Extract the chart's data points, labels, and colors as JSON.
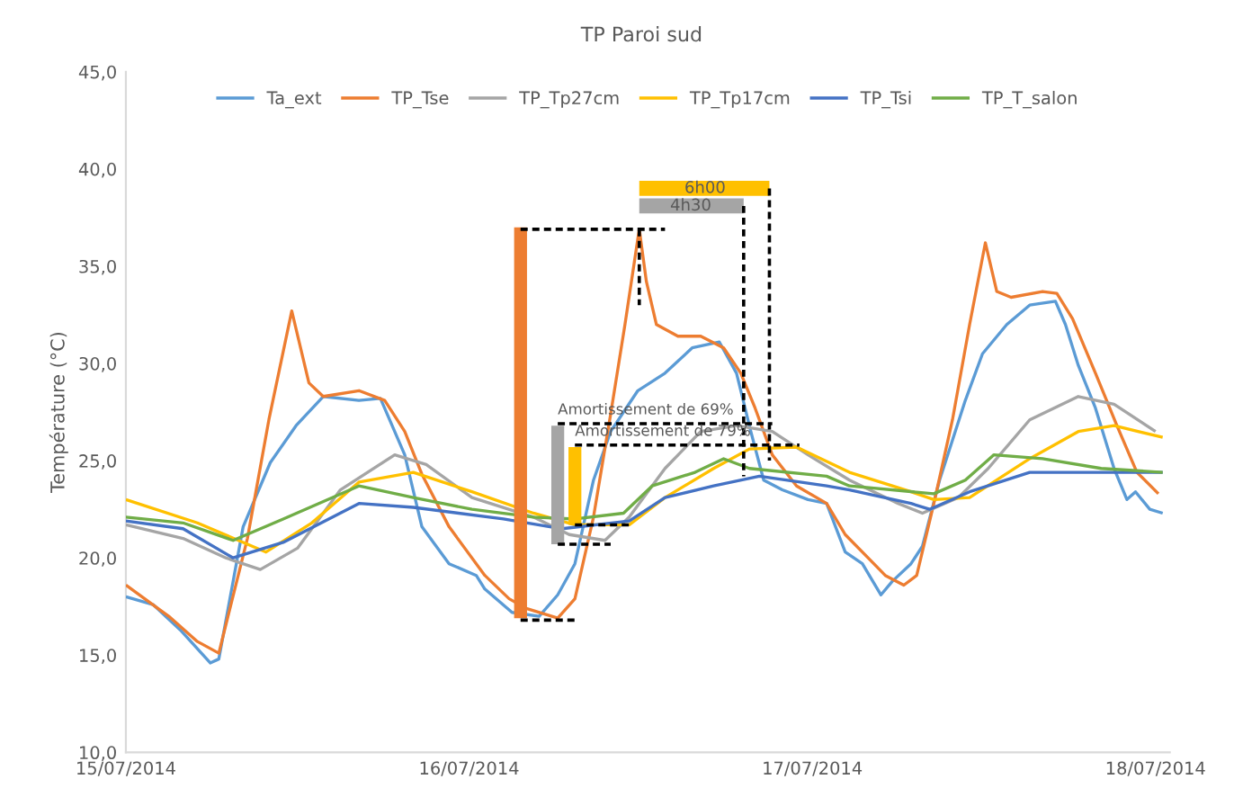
{
  "chart_data": {
    "type": "line",
    "title": "TP Paroi sud",
    "ylabel": "Température (°C)",
    "xlim": [
      "2014-07-15T00:00",
      "2014-07-18T01:00"
    ],
    "xticks": [
      {
        "value": "2014-07-15",
        "label": "15/07/2014"
      },
      {
        "value": "2014-07-16",
        "label": "16/07/2014"
      },
      {
        "value": "2014-07-17",
        "label": "17/07/2014"
      },
      {
        "value": "2014-07-18",
        "label": "18/07/2014"
      }
    ],
    "ylim": [
      10,
      45
    ],
    "yticks": [
      {
        "value": 10,
        "label": "10,0"
      },
      {
        "value": 15,
        "label": "15,0"
      },
      {
        "value": 20,
        "label": "20,0"
      },
      {
        "value": 25,
        "label": "25,0"
      },
      {
        "value": 30,
        "label": "30,0"
      },
      {
        "value": 35,
        "label": "35,0"
      },
      {
        "value": 40,
        "label": "40,0"
      },
      {
        "value": 45,
        "label": "45,0"
      }
    ],
    "grid": false,
    "legend": "top",
    "marker": "none",
    "line_style": "solid",
    "series": [
      {
        "name": "Ta_ext",
        "color": "#5b9bd5",
        "x": [
          "2014-07-15T00:00",
          "2014-07-15T01:54",
          "2014-07-15T03:48",
          "2014-07-15T05:54",
          "2014-07-15T06:30",
          "2014-07-15T08:12",
          "2014-07-15T10:06",
          "2014-07-15T11:54",
          "2014-07-15T13:48",
          "2014-07-15T16:18",
          "2014-07-15T17:48",
          "2014-07-15T19:30",
          "2014-07-15T20:42",
          "2014-07-15T22:36",
          "2014-07-16T00:30",
          "2014-07-16T01:06",
          "2014-07-16T03:00",
          "2014-07-16T04:54",
          "2014-07-16T06:12",
          "2014-07-16T07:24",
          "2014-07-16T08:42",
          "2014-07-16T09:54",
          "2014-07-16T11:48",
          "2014-07-16T13:42",
          "2014-07-16T15:36",
          "2014-07-16T17:30",
          "2014-07-16T18:42",
          "2014-07-16T19:42",
          "2014-07-16T20:36",
          "2014-07-16T21:54",
          "2014-07-16T23:42",
          "2014-07-17T01:00",
          "2014-07-17T02:18",
          "2014-07-17T03:30",
          "2014-07-17T04:48",
          "2014-07-17T05:36",
          "2014-07-17T06:54",
          "2014-07-17T07:42",
          "2014-07-17T08:54",
          "2014-07-17T10:42",
          "2014-07-17T11:54",
          "2014-07-17T13:36",
          "2014-07-17T15:12",
          "2014-07-17T17:00",
          "2014-07-17T17:42",
          "2014-07-17T18:36",
          "2014-07-17T19:48",
          "2014-07-17T21:06",
          "2014-07-17T22:00",
          "2014-07-17T22:36",
          "2014-07-17T23:36",
          "2014-07-18T00:30"
        ],
        "values": [
          18.0,
          17.6,
          16.3,
          14.6,
          14.8,
          21.6,
          24.9,
          26.8,
          28.3,
          28.1,
          28.2,
          25.3,
          21.6,
          19.7,
          19.1,
          18.4,
          17.2,
          17.0,
          18.1,
          19.7,
          24.0,
          26.5,
          28.6,
          29.5,
          30.8,
          31.1,
          29.5,
          26.5,
          24.0,
          23.5,
          23.0,
          22.8,
          20.3,
          19.7,
          18.1,
          18.8,
          19.7,
          20.6,
          24.0,
          28.1,
          30.5,
          32.0,
          33.0,
          33.2,
          32.0,
          29.9,
          27.7,
          24.6,
          23.0,
          23.4,
          22.5,
          22.3
        ]
      },
      {
        "name": "TP_Tse",
        "color": "#ed7d31",
        "x": [
          "2014-07-15T00:00",
          "2014-07-15T03:00",
          "2014-07-15T05:00",
          "2014-07-15T06:30",
          "2014-07-15T08:30",
          "2014-07-15T10:00",
          "2014-07-15T11:36",
          "2014-07-15T12:48",
          "2014-07-15T13:48",
          "2014-07-15T16:18",
          "2014-07-15T18:06",
          "2014-07-15T19:30",
          "2014-07-15T20:42",
          "2014-07-15T22:36",
          "2014-07-16T01:06",
          "2014-07-16T02:48",
          "2014-07-16T04:00",
          "2014-07-16T06:12",
          "2014-07-16T07:24",
          "2014-07-16T08:42",
          "2014-07-16T09:54",
          "2014-07-16T10:54",
          "2014-07-16T11:54",
          "2014-07-16T12:24",
          "2014-07-16T13:06",
          "2014-07-16T14:36",
          "2014-07-16T16:12",
          "2014-07-16T17:48",
          "2014-07-16T19:00",
          "2014-07-16T20:00",
          "2014-07-16T21:12",
          "2014-07-16T22:54",
          "2014-07-17T01:00",
          "2014-07-17T02:18",
          "2014-07-17T03:54",
          "2014-07-17T05:06",
          "2014-07-17T06:24",
          "2014-07-17T07:18",
          "2014-07-17T08:30",
          "2014-07-17T09:48",
          "2014-07-17T11:00",
          "2014-07-17T12:06",
          "2014-07-17T12:54",
          "2014-07-17T13:54",
          "2014-07-17T16:06",
          "2014-07-17T17:06",
          "2014-07-17T18:12",
          "2014-07-17T19:48",
          "2014-07-17T21:18",
          "2014-07-17T22:42",
          "2014-07-18T00:12"
        ],
        "values": [
          18.6,
          17.0,
          15.7,
          15.1,
          21.0,
          27.1,
          32.7,
          29.0,
          28.3,
          28.6,
          28.1,
          26.5,
          24.3,
          21.6,
          19.1,
          17.9,
          17.4,
          16.9,
          17.9,
          22.1,
          27.4,
          32.0,
          36.9,
          34.2,
          32.0,
          31.4,
          31.4,
          30.8,
          29.5,
          27.7,
          25.3,
          23.7,
          22.8,
          21.2,
          20.0,
          19.1,
          18.6,
          19.1,
          22.8,
          27.1,
          32.0,
          36.2,
          33.7,
          33.4,
          33.7,
          33.6,
          32.3,
          29.5,
          26.8,
          24.4,
          23.3
        ]
      },
      {
        "name": "TP_Tp27cm",
        "color": "#a5a5a5",
        "x": [
          "2014-07-15T00:00",
          "2014-07-15T04:00",
          "2014-07-15T07:00",
          "2014-07-15T09:24",
          "2014-07-15T12:00",
          "2014-07-15T15:00",
          "2014-07-15T18:48",
          "2014-07-15T21:00",
          "2014-07-16T00:12",
          "2014-07-16T04:30",
          "2014-07-16T07:00",
          "2014-07-16T09:30",
          "2014-07-16T11:12",
          "2014-07-16T13:42",
          "2014-07-16T16:12",
          "2014-07-16T18:42",
          "2014-07-16T21:12",
          "2014-07-16T23:42",
          "2014-07-17T02:36",
          "2014-07-17T06:00",
          "2014-07-17T07:42",
          "2014-07-17T10:12",
          "2014-07-17T12:18",
          "2014-07-17T15:12",
          "2014-07-17T18:36",
          "2014-07-17T21:06",
          "2014-07-18T00:00"
        ],
        "values": [
          21.7,
          21.0,
          20.0,
          19.4,
          20.5,
          23.5,
          25.3,
          24.8,
          23.1,
          22.1,
          21.2,
          20.9,
          22.1,
          24.6,
          26.5,
          26.8,
          26.5,
          25.3,
          24.0,
          22.8,
          22.3,
          23.1,
          24.6,
          27.1,
          28.3,
          27.9,
          26.5
        ]
      },
      {
        "name": "TP_Tp17cm",
        "color": "#ffc000",
        "x": [
          "2014-07-15T00:00",
          "2014-07-15T05:00",
          "2014-07-15T09:48",
          "2014-07-15T13:00",
          "2014-07-15T16:18",
          "2014-07-15T20:06",
          "2014-07-16T00:12",
          "2014-07-16T04:30",
          "2014-07-16T07:24",
          "2014-07-16T11:12",
          "2014-07-16T13:42",
          "2014-07-16T17:06",
          "2014-07-16T19:36",
          "2014-07-16T22:54",
          "2014-07-17T02:36",
          "2014-07-17T06:54",
          "2014-07-17T08:30",
          "2014-07-17T11:00",
          "2014-07-17T15:12",
          "2014-07-17T18:36",
          "2014-07-17T21:06",
          "2014-07-18T00:30"
        ],
        "values": [
          23.0,
          21.8,
          20.3,
          21.8,
          23.9,
          24.4,
          23.4,
          22.3,
          21.7,
          21.7,
          23.1,
          24.6,
          25.6,
          25.7,
          24.4,
          23.4,
          23.0,
          23.1,
          25.1,
          26.5,
          26.8,
          26.2
        ]
      },
      {
        "name": "TP_Tsi",
        "color": "#4472c4",
        "x": [
          "2014-07-15T00:00",
          "2014-07-15T04:00",
          "2014-07-15T07:30",
          "2014-07-15T11:00",
          "2014-07-15T16:18",
          "2014-07-15T20:06",
          "2014-07-16T02:24",
          "2014-07-16T06:30",
          "2014-07-16T11:12",
          "2014-07-16T13:42",
          "2014-07-16T17:06",
          "2014-07-16T20:18",
          "2014-07-17T01:00",
          "2014-07-17T02:36",
          "2014-07-17T06:54",
          "2014-07-17T08:12",
          "2014-07-17T11:00",
          "2014-07-17T15:12",
          "2014-07-17T20:12",
          "2014-07-18T00:30"
        ],
        "values": [
          21.9,
          21.5,
          20.0,
          20.8,
          22.8,
          22.6,
          22.0,
          21.5,
          21.9,
          23.1,
          23.7,
          24.2,
          23.7,
          23.5,
          22.8,
          22.5,
          23.4,
          24.4,
          24.4,
          24.4
        ]
      },
      {
        "name": "TP_T_salon",
        "color": "#70ad47",
        "x": [
          "2014-07-15T00:00",
          "2014-07-15T04:00",
          "2014-07-15T07:30",
          "2014-07-15T11:00",
          "2014-07-15T16:18",
          "2014-07-15T20:06",
          "2014-07-16T00:12",
          "2014-07-16T04:30",
          "2014-07-16T07:24",
          "2014-07-16T10:48",
          "2014-07-16T12:48",
          "2014-07-16T15:48",
          "2014-07-16T17:48",
          "2014-07-16T19:36",
          "2014-07-17T01:00",
          "2014-07-17T02:36",
          "2014-07-17T08:30",
          "2014-07-17T10:42",
          "2014-07-17T12:42",
          "2014-07-17T16:06",
          "2014-07-17T20:12",
          "2014-07-18T00:30"
        ],
        "values": [
          22.1,
          21.8,
          20.9,
          22.0,
          23.7,
          23.1,
          22.5,
          22.1,
          22.0,
          22.3,
          23.7,
          24.4,
          25.1,
          24.6,
          24.2,
          23.7,
          23.3,
          24.0,
          25.3,
          25.1,
          24.6,
          24.4
        ]
      },
      {
        "type": "bar",
        "color": "#ed7d31",
        "x": [
          "2014-07-16T03:36"
        ],
        "base": [
          16.9
        ],
        "values": [
          20.1
        ]
      },
      {
        "type": "bar",
        "color": "#a5a5a5",
        "x": [
          "2014-07-16T06:12"
        ],
        "base": [
          20.7
        ],
        "values": [
          6.1
        ]
      },
      {
        "type": "bar",
        "color": "#ffc000",
        "x": [
          "2014-07-16T07:24"
        ],
        "base": [
          21.7
        ],
        "values": [
          4.0
        ]
      },
      {
        "type": "line",
        "line_style": "solid",
        "color": "#ffc000",
        "x": [
          "2014-07-16T11:54",
          "2014-07-16T21:00"
        ],
        "values": [
          39.0,
          39.0
        ]
      },
      {
        "type": "line",
        "line_style": "solid",
        "color": "#a5a5a5",
        "x": [
          "2014-07-16T11:54",
          "2014-07-16T19:12"
        ],
        "values": [
          38.1,
          38.1
        ]
      },
      {
        "type": "line",
        "line_style": "dashed",
        "color": "#000000",
        "x": [
          "2014-07-16T03:36",
          "2014-07-16T13:42",
          null,
          "2014-07-16T03:36",
          "2014-07-16T07:24",
          null,
          "2014-07-16T11:54",
          "2014-07-16T11:54",
          null,
          "2014-07-16T06:12",
          "2014-07-16T21:12",
          null,
          "2014-07-16T06:12",
          "2014-07-16T09:54",
          null,
          "2014-07-16T07:24",
          "2014-07-16T23:06",
          null,
          "2014-07-16T07:24",
          "2014-07-16T11:24",
          null,
          "2014-07-16T19:12",
          "2014-07-16T19:12",
          null,
          "2014-07-16T21:00",
          "2014-07-16T21:00"
        ],
        "values": [
          36.9,
          36.9,
          null,
          16.8,
          16.8,
          null,
          36.9,
          33.0,
          null,
          26.9,
          26.9,
          null,
          20.7,
          20.7,
          null,
          25.8,
          25.8,
          null,
          21.7,
          21.7,
          null,
          38.1,
          24.2,
          null,
          39.0,
          25.0
        ]
      }
    ],
    "annotations": [
      {
        "text": "6h00",
        "x": "2014-07-16T16:30",
        "y": 39.0
      },
      {
        "text": "4h30",
        "x": "2014-07-16T15:30",
        "y": 38.1
      },
      {
        "text": "Amortissement de 69%",
        "x": "2014-07-16T06:12",
        "y": 26.9
      },
      {
        "text": "Amortissement de 79%",
        "x": "2014-07-16T07:24",
        "y": 25.8
      }
    ]
  }
}
